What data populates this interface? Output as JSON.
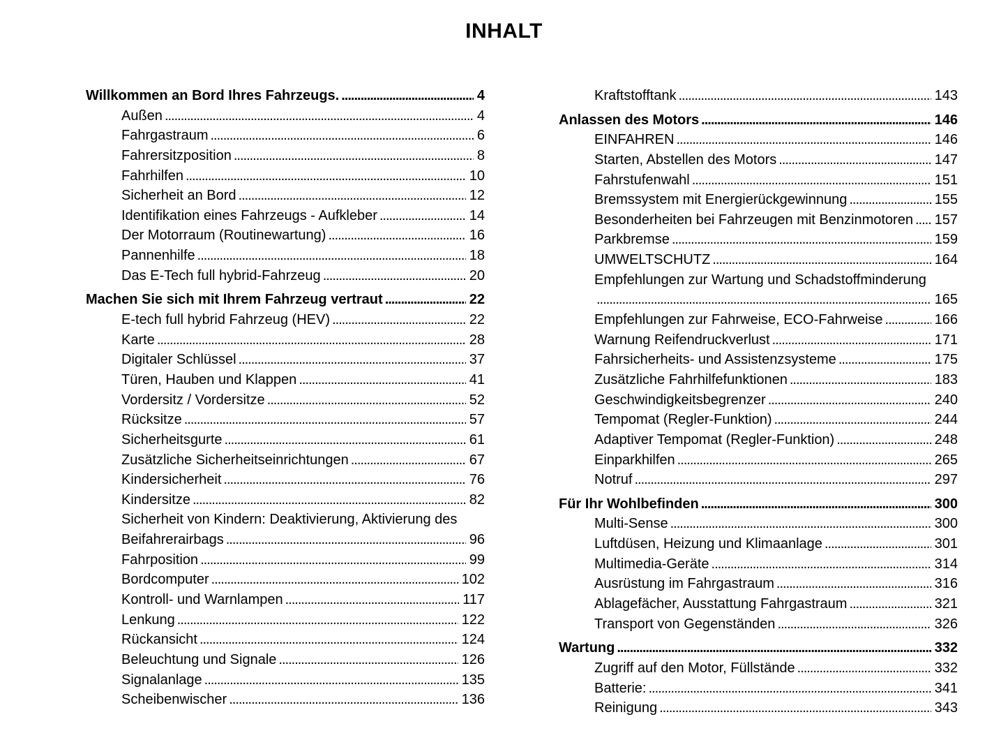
{
  "title": "INHALT",
  "colors": {
    "text": "#000000",
    "background": "#ffffff"
  },
  "columns": [
    {
      "rows": [
        {
          "bold": true,
          "indent": 0,
          "text": "Willkommen an Bord Ihres Fahrzeugs.",
          "page": "4"
        },
        {
          "bold": false,
          "indent": 1,
          "text": "Außen",
          "page": "4"
        },
        {
          "bold": false,
          "indent": 1,
          "text": "Fahrgastraum",
          "page": "6"
        },
        {
          "bold": false,
          "indent": 1,
          "text": "Fahrersitzposition",
          "page": "8"
        },
        {
          "bold": false,
          "indent": 1,
          "text": "Fahrhilfen",
          "page": "10"
        },
        {
          "bold": false,
          "indent": 1,
          "text": "Sicherheit an Bord",
          "page": "12"
        },
        {
          "bold": false,
          "indent": 1,
          "text": "Identifikation eines Fahrzeugs - Aufkleber",
          "page": "14"
        },
        {
          "bold": false,
          "indent": 1,
          "text": "Der Motorraum (Routinewartung)",
          "page": "16"
        },
        {
          "bold": false,
          "indent": 1,
          "text": "Pannenhilfe",
          "page": "18"
        },
        {
          "bold": false,
          "indent": 1,
          "text": "Das E-Tech full hybrid-Fahrzeug",
          "page": "20"
        },
        {
          "bold": true,
          "indent": 0,
          "text": "Machen Sie sich mit Ihrem Fahrzeug vertraut",
          "page": "22"
        },
        {
          "bold": false,
          "indent": 1,
          "text": "E-tech full hybrid Fahrzeug (HEV)",
          "page": "22"
        },
        {
          "bold": false,
          "indent": 1,
          "text": "Karte",
          "page": "28"
        },
        {
          "bold": false,
          "indent": 1,
          "text": "Digitaler Schlüssel",
          "page": "37"
        },
        {
          "bold": false,
          "indent": 1,
          "text": "Türen, Hauben und Klappen",
          "page": "41"
        },
        {
          "bold": false,
          "indent": 1,
          "text": "Vordersitz / Vordersitze",
          "page": "52"
        },
        {
          "bold": false,
          "indent": 1,
          "text": "Rücksitze",
          "page": "57"
        },
        {
          "bold": false,
          "indent": 1,
          "text": "Sicherheitsgurte",
          "page": "61"
        },
        {
          "bold": false,
          "indent": 1,
          "text": "Zusätzliche Sicherheitseinrichtungen",
          "page": "67"
        },
        {
          "bold": false,
          "indent": 1,
          "text": "Kindersicherheit",
          "page": "76"
        },
        {
          "bold": false,
          "indent": 1,
          "text": "Kindersitze",
          "page": "82"
        },
        {
          "bold": false,
          "indent": 1,
          "text": "Sicherheit von Kindern: Deaktivierung, Aktivierung des",
          "page": null
        },
        {
          "bold": false,
          "indent": 1,
          "text": "Beifahrerairbags",
          "page": "96"
        },
        {
          "bold": false,
          "indent": 1,
          "text": "Fahrposition",
          "page": "99"
        },
        {
          "bold": false,
          "indent": 1,
          "text": "Bordcomputer",
          "page": "102"
        },
        {
          "bold": false,
          "indent": 1,
          "text": "Kontroll- und Warnlampen",
          "page": "117"
        },
        {
          "bold": false,
          "indent": 1,
          "text": "Lenkung",
          "page": "122"
        },
        {
          "bold": false,
          "indent": 1,
          "text": "Rückansicht",
          "page": "124"
        },
        {
          "bold": false,
          "indent": 1,
          "text": "Beleuchtung und Signale",
          "page": "126"
        },
        {
          "bold": false,
          "indent": 1,
          "text": "Signalanlage",
          "page": "135"
        },
        {
          "bold": false,
          "indent": 1,
          "text": "Scheibenwischer",
          "page": "136"
        }
      ]
    },
    {
      "rows": [
        {
          "bold": false,
          "indent": 1,
          "text": "Kraftstofftank",
          "page": "143"
        },
        {
          "bold": true,
          "indent": 0,
          "text": "Anlassen des Motors",
          "page": "146"
        },
        {
          "bold": false,
          "indent": 1,
          "text": "EINFAHREN",
          "page": "146"
        },
        {
          "bold": false,
          "indent": 1,
          "text": "Starten, Abstellen des Motors",
          "page": "147"
        },
        {
          "bold": false,
          "indent": 1,
          "text": "Fahrstufenwahl",
          "page": "151"
        },
        {
          "bold": false,
          "indent": 1,
          "text": "Bremssystem mit Energierückgewinnung",
          "page": "155"
        },
        {
          "bold": false,
          "indent": 1,
          "text": "Besonderheiten bei Fahrzeugen mit Benzinmotoren",
          "page": "157"
        },
        {
          "bold": false,
          "indent": 1,
          "text": "Parkbremse",
          "page": "159"
        },
        {
          "bold": false,
          "indent": 1,
          "text": "UMWELTSCHUTZ",
          "page": "164"
        },
        {
          "bold": false,
          "indent": 1,
          "text": "Empfehlungen zur Wartung und Schadstoffminderung",
          "page": null
        },
        {
          "bold": false,
          "indent": 1,
          "text": "",
          "page": "165"
        },
        {
          "bold": false,
          "indent": 1,
          "text": "Empfehlungen zur Fahrweise, ECO-Fahrweise",
          "page": "166"
        },
        {
          "bold": false,
          "indent": 1,
          "text": "Warnung Reifendruckverlust",
          "page": "171"
        },
        {
          "bold": false,
          "indent": 1,
          "text": "Fahrsicherheits- und Assistenzsysteme",
          "page": "175"
        },
        {
          "bold": false,
          "indent": 1,
          "text": "Zusätzliche Fahrhilfefunktionen",
          "page": "183"
        },
        {
          "bold": false,
          "indent": 1,
          "text": "Geschwindigkeitsbegrenzer",
          "page": "240"
        },
        {
          "bold": false,
          "indent": 1,
          "text": "Tempomat (Regler-Funktion)",
          "page": "244"
        },
        {
          "bold": false,
          "indent": 1,
          "text": "Adaptiver Tempomat (Regler-Funktion)",
          "page": "248"
        },
        {
          "bold": false,
          "indent": 1,
          "text": "Einparkhilfen",
          "page": "265"
        },
        {
          "bold": false,
          "indent": 1,
          "text": "Notruf",
          "page": "297"
        },
        {
          "bold": true,
          "indent": 0,
          "text": "Für Ihr Wohlbefinden",
          "page": "300"
        },
        {
          "bold": false,
          "indent": 1,
          "text": "Multi-Sense",
          "page": "300"
        },
        {
          "bold": false,
          "indent": 1,
          "text": "Luftdüsen, Heizung und Klimaanlage",
          "page": "301"
        },
        {
          "bold": false,
          "indent": 1,
          "text": "Multimedia-Geräte",
          "page": "314"
        },
        {
          "bold": false,
          "indent": 1,
          "text": "Ausrüstung im Fahrgastraum",
          "page": "316"
        },
        {
          "bold": false,
          "indent": 1,
          "text": "Ablagefächer, Ausstattung Fahrgastraum",
          "page": "321"
        },
        {
          "bold": false,
          "indent": 1,
          "text": "Transport von Gegenständen",
          "page": "326"
        },
        {
          "bold": true,
          "indent": 0,
          "text": "Wartung",
          "page": "332"
        },
        {
          "bold": false,
          "indent": 1,
          "text": "Zugriff auf den Motor, Füllstände",
          "page": "332"
        },
        {
          "bold": false,
          "indent": 1,
          "text": "Batterie:",
          "page": "341"
        },
        {
          "bold": false,
          "indent": 1,
          "text": "Reinigung",
          "page": "343"
        }
      ]
    }
  ]
}
